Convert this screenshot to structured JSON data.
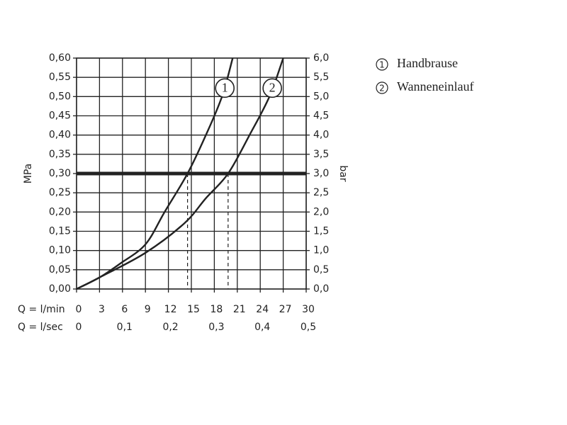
{
  "chart_data": {
    "type": "line",
    "x_label": "Q = l/min",
    "x2_label": "Q = l/sec",
    "y_label": "MPa",
    "y2_label": "bar",
    "xlim": [
      0,
      30
    ],
    "xticks": [
      0,
      3,
      6,
      9,
      12,
      15,
      18,
      21,
      24,
      27,
      30
    ],
    "x2lim": [
      0,
      0.5
    ],
    "x2ticks": [
      0,
      {
        "value": 0.1,
        "label": "0,1"
      },
      {
        "value": 0.2,
        "label": "0,2"
      },
      {
        "value": 0.3,
        "label": "0,3"
      },
      {
        "value": 0.4,
        "label": "0,4"
      },
      {
        "value": 0.5,
        "label": "0,5"
      }
    ],
    "ylim": [
      0,
      0.6
    ],
    "yticks": [
      {
        "value": 0,
        "label": "0,00"
      },
      {
        "value": 0.05,
        "label": "0,05"
      },
      {
        "value": 0.1,
        "label": "0,10"
      },
      {
        "value": 0.15,
        "label": "0,15"
      },
      {
        "value": 0.2,
        "label": "0,20"
      },
      {
        "value": 0.25,
        "label": "0,25"
      },
      {
        "value": 0.3,
        "label": "0,30"
      },
      {
        "value": 0.35,
        "label": "0,35"
      },
      {
        "value": 0.4,
        "label": "0,40"
      },
      {
        "value": 0.45,
        "label": "0,45"
      },
      {
        "value": 0.5,
        "label": "0,50"
      },
      {
        "value": 0.55,
        "label": "0,55"
      },
      {
        "value": 0.6,
        "label": "0,60"
      }
    ],
    "y2lim": [
      0,
      6
    ],
    "y2ticks": [
      {
        "value": 0,
        "label": "0,0"
      },
      {
        "value": 0.5,
        "label": "0,5"
      },
      {
        "value": 1,
        "label": "1,0"
      },
      {
        "value": 1.5,
        "label": "1,5"
      },
      {
        "value": 2,
        "label": "2,0"
      },
      {
        "value": 2.5,
        "label": "2,5"
      },
      {
        "value": 3,
        "label": "3,0"
      },
      {
        "value": 3.5,
        "label": "3,5"
      },
      {
        "value": 4,
        "label": "4,0"
      },
      {
        "value": 4.5,
        "label": "4,5"
      },
      {
        "value": 5,
        "label": "5,0"
      },
      {
        "value": 5.5,
        "label": "5,5"
      },
      {
        "value": 6,
        "label": "6,0"
      }
    ],
    "grid": true,
    "reference_y": 0.3,
    "reference_x": [
      14.5,
      19.8
    ],
    "series": [
      {
        "label": "1",
        "name": "Handbrause",
        "color": "#222222",
        "x": [
          0,
          3,
          5.7,
          9,
          11.5,
          14.5,
          16.9,
          19,
          20.4
        ],
        "values": [
          0,
          0.03,
          0.066,
          0.116,
          0.2,
          0.3,
          0.4,
          0.5,
          0.6
        ]
      },
      {
        "label": "2",
        "name": "Wanneneinlauf",
        "color": "#222222",
        "x": [
          0,
          3,
          9,
          14.1,
          16.9,
          19.8,
          22.6,
          25.2,
          27
        ],
        "values": [
          0,
          0.03,
          0.094,
          0.171,
          0.236,
          0.3,
          0.4,
          0.5,
          0.6
        ]
      }
    ]
  }
}
